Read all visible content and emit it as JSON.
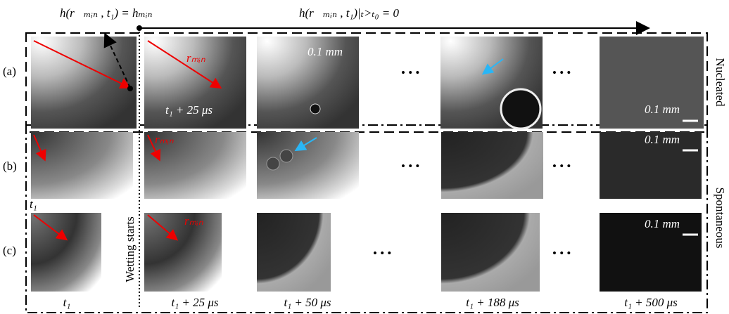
{
  "header": {
    "left_equation": "h(r⃗ₘᵢₙ , t₁) = hₘᵢₙ",
    "right_equation": "h(r⃗ₘᵢₙ , t₁)|ₜ>ₜ₀ = 0"
  },
  "rows": [
    {
      "label": "(a)"
    },
    {
      "label": "(b)"
    },
    {
      "label": "(c)"
    }
  ],
  "side_labels": {
    "nucleated": "Nucleated",
    "spontaneous": "Spontaneous"
  },
  "wetting_label": "Wetting starts",
  "panels": {
    "a": {
      "r_min": "rₘᵢₙ",
      "time": "t₁ + 25 μs",
      "scale_1": "0.1 mm",
      "scale_2": "0.1 mm"
    },
    "b": {
      "r_min": "rₘᵢₙ",
      "scale": "0.1 mm",
      "time": "t₁"
    },
    "c": {
      "r_min": "rₘᵢₙ",
      "scale": "0.1 mm"
    }
  },
  "time_axis": [
    "t₁",
    "t₁ + 25 μs",
    "t₁ + 50 μs",
    "t₁ + 188 μs",
    "t₁ + 500 μs"
  ]
}
